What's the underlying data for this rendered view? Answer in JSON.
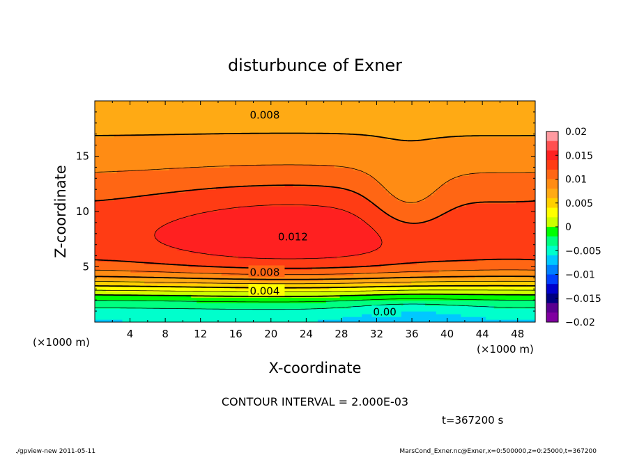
{
  "chart_data": {
    "type": "heatmap",
    "title": "disturbunce of Exner",
    "xlabel": "X-coordinate",
    "ylabel": "Z-coordinate",
    "x_unit": "(×1000 m)",
    "x_unit_right": "(×1000 m)",
    "xlim": [
      0,
      50
    ],
    "ylim": [
      0,
      20
    ],
    "x_ticks": [
      4,
      8,
      12,
      16,
      20,
      24,
      28,
      32,
      36,
      40,
      44,
      48
    ],
    "y_ticks": [
      5,
      10,
      15
    ],
    "colorbar": {
      "ticks": [
        "0.02",
        "0.015",
        "0.01",
        "0.005",
        "0",
        "−0.005",
        "−0.01",
        "−0.015",
        "−0.02"
      ],
      "levels": [
        0.02,
        0.018,
        0.016,
        0.014,
        0.012,
        0.01,
        0.008,
        0.006,
        0.004,
        0.002,
        0,
        -0.002,
        -0.004,
        -0.006,
        -0.008,
        -0.01,
        -0.012,
        -0.014,
        -0.016,
        -0.018,
        -0.02
      ],
      "colors": [
        "#ff9aa0",
        "#ff5050",
        "#ff2020",
        "#ff3c14",
        "#ff6614",
        "#ff8c14",
        "#ffaa14",
        "#ffd000",
        "#ffff00",
        "#ccff00",
        "#00ff00",
        "#00ff80",
        "#00ffcc",
        "#00c8ff",
        "#0080ff",
        "#0040ff",
        "#0000cc",
        "#000080",
        "#5a0090",
        "#8000a0"
      ]
    },
    "contour_labels": [
      {
        "text": "0.008",
        "x": 17.6,
        "z": 18.7
      },
      {
        "text": "0.012",
        "x": 20.8,
        "z": 7.7
      },
      {
        "text": "0.008",
        "x": 17.6,
        "z": 4.5
      },
      {
        "text": "0.004",
        "x": 17.6,
        "z": 2.8
      },
      {
        "text": "0.00",
        "x": 31.6,
        "z": 0.9
      }
    ],
    "contour_interval": "CONTOUR INTERVAL = 2.000E-03",
    "time_label": "t=367200 s"
  },
  "footer": {
    "left": "./gpview-new   2011-05-11",
    "right": "MarsCond_Exner.nc@Exner,x=0:500000,z=0:25000,t=367200"
  }
}
